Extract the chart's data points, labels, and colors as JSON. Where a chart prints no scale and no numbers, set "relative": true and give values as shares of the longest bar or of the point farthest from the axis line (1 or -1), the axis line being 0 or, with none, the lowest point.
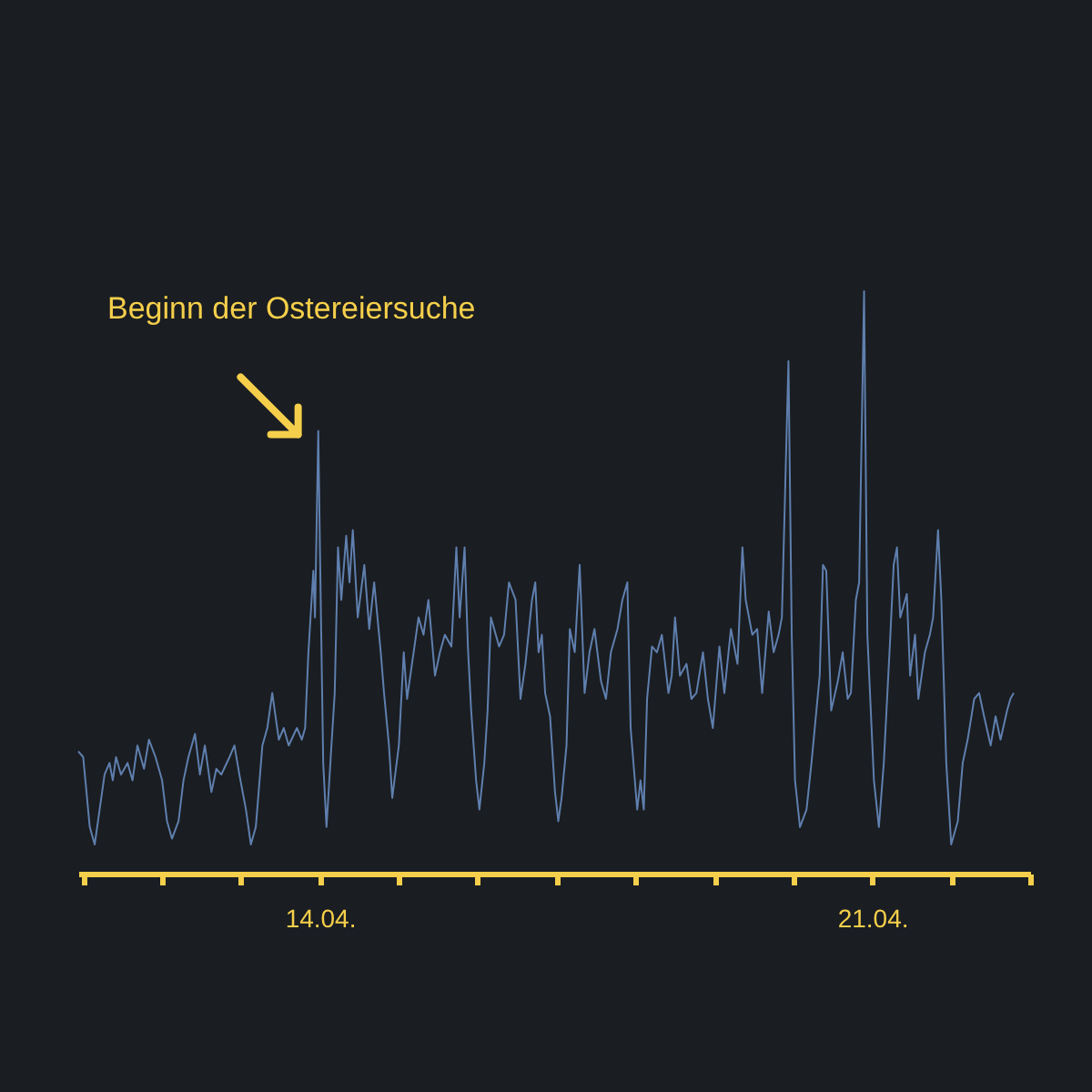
{
  "chart_data": {
    "type": "line",
    "relative": true,
    "annotations": [
      "Beginn der Ostereiersuche"
    ],
    "xlim": [
      "--04-10T22:30",
      "--04-23T00:00"
    ],
    "xticks": [
      {
        "value": "--04-11",
        "label": null
      },
      {
        "value": "--04-12",
        "label": null
      },
      {
        "value": "--04-13",
        "label": null
      },
      {
        "value": "--04-14",
        "label": "14.04."
      },
      {
        "value": "--04-15",
        "label": null
      },
      {
        "value": "--04-16",
        "label": null
      },
      {
        "value": "--04-17",
        "label": null
      },
      {
        "value": "--04-18",
        "label": null
      },
      {
        "value": "--04-19",
        "label": null
      },
      {
        "value": "--04-20",
        "label": null
      },
      {
        "value": "--04-21",
        "label": "21.04."
      },
      {
        "value": "--04-22",
        "label": null
      },
      {
        "value": "--04-23",
        "label": null
      }
    ],
    "x": [
      "--04-10T22:30",
      "--04-11T00:00",
      "--04-11T02:00",
      "--04-11T03:30",
      "--04-11T05:00",
      "--04-11T06:30",
      "--04-11T08:00",
      "--04-11T09:00",
      "--04-11T10:00",
      "--04-11T11:30",
      "--04-11T13:30",
      "--04-11T15:00",
      "--04-11T16:30",
      "--04-11T18:30",
      "--04-11T20:00",
      "--04-11T22:00",
      "--04-12T00:00",
      "--04-12T01:30",
      "--04-12T03:00",
      "--04-12T05:00",
      "--04-12T06:30",
      "--04-12T08:00",
      "--04-12T10:00",
      "--04-12T11:30",
      "--04-12T13:00",
      "--04-12T15:00",
      "--04-12T16:30",
      "--04-12T18:00",
      "--04-12T20:30",
      "--04-12T22:00",
      "--04-12T23:30",
      "--04-13T01:30",
      "--04-13T03:00",
      "--04-13T04:30",
      "--04-13T06:30",
      "--04-13T08:00",
      "--04-13T09:30",
      "--04-13T11:30",
      "--04-13T13:00",
      "--04-13T14:30",
      "--04-13T17:00",
      "--04-13T18:30",
      "--04-13T19:30",
      "--04-13T20:30",
      "--04-13T22:00",
      "--04-13T22:30",
      "--04-13T23:30",
      "--04-14T00:00",
      "--04-14T01:00",
      "--04-14T02:00",
      "--04-14T03:30",
      "--04-14T04:30",
      "--04-14T05:30",
      "--04-14T06:30",
      "--04-14T08:00",
      "--04-14T09:00",
      "--04-14T10:00",
      "--04-14T11:30",
      "--04-14T13:30",
      "--04-14T15:00",
      "--04-14T16:30",
      "--04-14T18:30",
      "--04-14T19:30",
      "--04-14T21:00",
      "--04-14T22:00",
      "--04-15T00:00",
      "--04-15T01:30",
      "--04-15T02:30",
      "--04-15T04:30",
      "--04-15T06:00",
      "--04-15T07:30",
      "--04-15T09:00",
      "--04-15T11:00",
      "--04-15T12:30",
      "--04-15T14:00",
      "--04-15T16:00",
      "--04-15T17:30",
      "--04-15T18:30",
      "--04-15T20:00",
      "--04-15T21:00",
      "--04-15T22:00",
      "--04-15T23:30",
      "--04-16T00:30",
      "--04-16T02:00",
      "--04-16T03:00",
      "--04-16T04:00",
      "--04-16T05:00",
      "--04-16T06:30",
      "--04-16T08:00",
      "--04-16T09:30",
      "--04-16T11:30",
      "--04-16T13:00",
      "--04-16T14:30",
      "--04-16T16:30",
      "--04-16T17:30",
      "--04-16T18:30",
      "--04-16T19:30",
      "--04-16T20:30",
      "--04-16T22:00",
      "--04-16T23:30",
      "--04-17T00:30",
      "--04-17T01:30",
      "--04-17T03:00",
      "--04-17T04:00",
      "--04-17T05:30",
      "--04-17T07:00",
      "--04-17T08:30",
      "--04-17T10:00",
      "--04-17T11:30",
      "--04-17T13:30",
      "--04-17T15:00",
      "--04-17T16:30",
      "--04-17T18:30",
      "--04-17T20:00",
      "--04-17T21:30",
      "--04-17T22:30",
      "--04-18T00:30",
      "--04-18T01:30",
      "--04-18T02:30",
      "--04-18T03:30",
      "--04-18T05:00",
      "--04-18T06:30",
      "--04-18T08:00",
      "--04-18T10:00",
      "--04-18T11:00",
      "--04-18T12:00",
      "--04-18T13:30",
      "--04-18T15:30",
      "--04-18T17:00",
      "--04-18T18:30",
      "--04-18T20:30",
      "--04-18T22:00",
      "--04-18T23:30",
      "--04-19T01:30",
      "--04-19T03:00",
      "--04-19T05:00",
      "--04-19T07:00",
      "--04-19T08:30",
      "--04-19T09:30",
      "--04-19T11:30",
      "--04-19T13:00",
      "--04-19T14:30",
      "--04-19T16:30",
      "--04-19T18:00",
      "--04-19T19:30",
      "--04-19T20:30",
      "--04-19T22:30",
      "--04-19T23:30",
      "--04-20T00:30",
      "--04-20T02:00",
      "--04-20T04:00",
      "--04-20T05:30",
      "--04-20T06:30",
      "--04-20T08:00",
      "--04-20T09:00",
      "--04-20T10:00",
      "--04-20T11:30",
      "--04-20T13:30",
      "--04-20T15:00",
      "--04-20T16:30",
      "--04-20T17:30",
      "--04-20T19:00",
      "--04-20T20:00",
      "--04-20T21:30",
      "--04-20T22:30",
      "--04-21T00:30",
      "--04-21T02:00",
      "--04-21T03:30",
      "--04-21T05:30",
      "--04-21T06:30",
      "--04-21T07:30",
      "--04-21T08:30",
      "--04-21T10:30",
      "--04-21T11:30",
      "--04-21T13:00",
      "--04-21T14:00",
      "--04-21T16:00",
      "--04-21T17:30",
      "--04-21T18:30",
      "--04-21T20:00",
      "--04-21T21:00",
      "--04-21T22:30",
      "--04-22T00:00",
      "--04-22T02:00",
      "--04-22T03:30",
      "--04-22T05:00",
      "--04-22T07:00",
      "--04-22T08:30",
      "--04-22T10:00",
      "--04-22T12:00",
      "--04-22T13:30",
      "--04-22T15:00",
      "--04-22T17:00",
      "--04-22T18:00",
      "--04-22T19:00"
    ],
    "series": [
      {
        "color": "#5f7fae",
        "values": [
          0.21,
          0.2,
          0.08,
          0.05,
          0.11,
          0.17,
          0.19,
          0.16,
          0.2,
          0.17,
          0.19,
          0.16,
          0.22,
          0.18,
          0.23,
          0.2,
          0.16,
          0.09,
          0.06,
          0.09,
          0.16,
          0.2,
          0.24,
          0.17,
          0.22,
          0.14,
          0.18,
          0.17,
          0.2,
          0.22,
          0.17,
          0.11,
          0.05,
          0.08,
          0.22,
          0.25,
          0.31,
          0.23,
          0.25,
          0.22,
          0.25,
          0.23,
          0.25,
          0.38,
          0.52,
          0.44,
          0.76,
          0.56,
          0.19,
          0.08,
          0.22,
          0.31,
          0.56,
          0.47,
          0.58,
          0.5,
          0.59,
          0.44,
          0.53,
          0.42,
          0.5,
          0.38,
          0.31,
          0.22,
          0.13,
          0.22,
          0.38,
          0.3,
          0.38,
          0.44,
          0.41,
          0.47,
          0.34,
          0.38,
          0.41,
          0.39,
          0.56,
          0.44,
          0.56,
          0.39,
          0.28,
          0.16,
          0.11,
          0.19,
          0.28,
          0.44,
          0.42,
          0.39,
          0.41,
          0.5,
          0.47,
          0.3,
          0.36,
          0.47,
          0.5,
          0.38,
          0.41,
          0.31,
          0.27,
          0.14,
          0.09,
          0.13,
          0.22,
          0.42,
          0.38,
          0.53,
          0.31,
          0.38,
          0.42,
          0.33,
          0.3,
          0.38,
          0.42,
          0.47,
          0.5,
          0.25,
          0.11,
          0.16,
          0.11,
          0.3,
          0.39,
          0.38,
          0.41,
          0.31,
          0.34,
          0.44,
          0.34,
          0.36,
          0.3,
          0.31,
          0.38,
          0.3,
          0.25,
          0.39,
          0.31,
          0.42,
          0.36,
          0.56,
          0.47,
          0.41,
          0.42,
          0.31,
          0.45,
          0.38,
          0.41,
          0.44,
          0.88,
          0.41,
          0.16,
          0.08,
          0.11,
          0.19,
          0.25,
          0.34,
          0.53,
          0.52,
          0.28,
          0.33,
          0.38,
          0.3,
          0.31,
          0.47,
          0.5,
          1,
          0.41,
          0.16,
          0.08,
          0.19,
          0.41,
          0.53,
          0.56,
          0.44,
          0.48,
          0.34,
          0.41,
          0.3,
          0.38,
          0.41,
          0.44,
          0.59,
          0.47,
          0.19,
          0.05,
          0.09,
          0.19,
          0.23,
          0.3,
          0.31,
          0.27,
          0.22,
          0.27,
          0.23,
          0.28,
          0.3,
          0.31
        ]
      }
    ]
  }
}
